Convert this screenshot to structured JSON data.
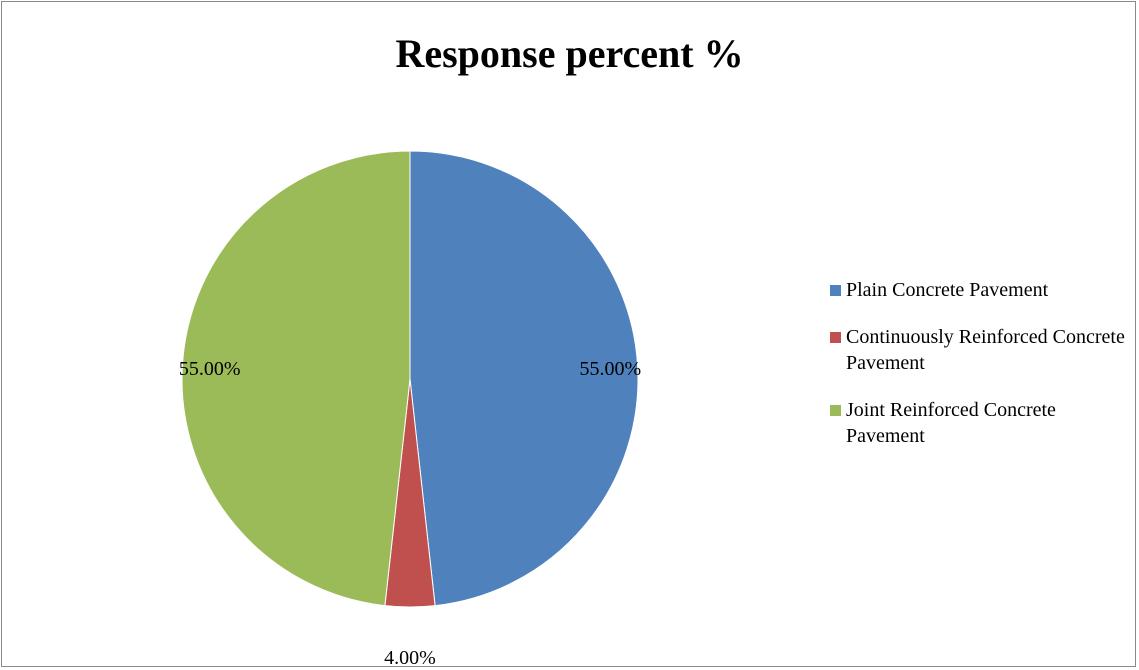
{
  "chart_data": {
    "type": "pie",
    "title": "Response percent %",
    "categories": [
      "Plain Concrete Pavement",
      "Continuously Reinforced Concrete Pavement",
      "Joint Reinforced Concrete Pavement"
    ],
    "values": [
      55.0,
      4.0,
      55.0
    ],
    "data_labels": [
      "55.00%",
      "4.00%",
      "55.00%"
    ],
    "colors": [
      "#4f81bd",
      "#c0504d",
      "#9bbb59"
    ],
    "legend_position": "right",
    "start_angle": "top, clockwise"
  }
}
